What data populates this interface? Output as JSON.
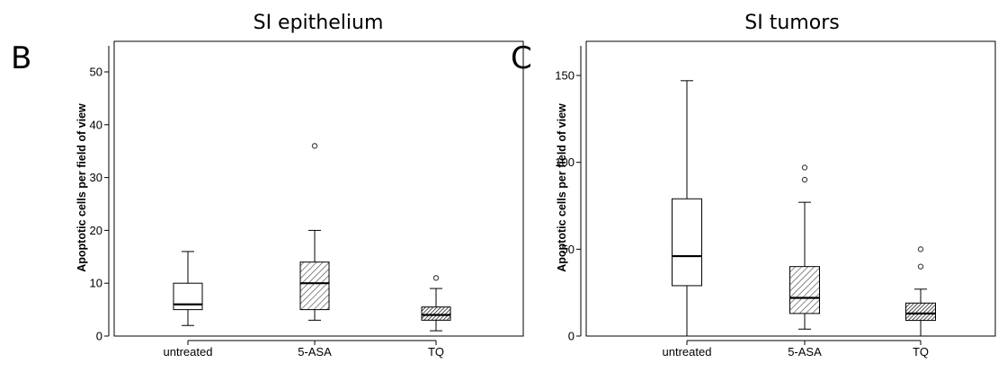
{
  "chart_data": [
    {
      "type": "boxplot",
      "panel_letter": "B",
      "title": "SI epithelium",
      "xlabel": "",
      "ylabel": "Apoptotic cells per field of view",
      "ylim": [
        0,
        55
      ],
      "yticks": [
        0,
        10,
        20,
        30,
        40,
        50
      ],
      "ytick_labels": [
        "0",
        "10",
        "20",
        "30",
        "40",
        "50"
      ],
      "categories": [
        "untreated",
        "5-ASA",
        "TQ"
      ],
      "boxes": [
        {
          "category": "untreated",
          "min": 2,
          "q1": 5,
          "median": 6,
          "q3": 10,
          "max": 16,
          "outliers": [],
          "fill": "white"
        },
        {
          "category": "5-ASA",
          "min": 3,
          "q1": 5,
          "median": 10,
          "q3": 14,
          "max": 20,
          "outliers": [
            36
          ],
          "fill": "diagonal-hatch"
        },
        {
          "category": "TQ",
          "min": 1,
          "q1": 3,
          "median": 4,
          "q3": 5.5,
          "max": 9,
          "outliers": [
            11
          ],
          "fill": "dense-hatch"
        }
      ]
    },
    {
      "type": "boxplot",
      "panel_letter": "C",
      "title": "SI tumors",
      "xlabel": "",
      "ylabel": "Apoptotic cells per field of view",
      "ylim": [
        0,
        165
      ],
      "yticks": [
        0,
        50,
        100,
        150
      ],
      "ytick_labels": [
        "0",
        "50",
        "100",
        "150"
      ],
      "categories": [
        "untreated",
        "5-ASA",
        "TQ"
      ],
      "boxes": [
        {
          "category": "untreated",
          "min": 0,
          "q1": 29,
          "median": 46,
          "q3": 79,
          "max": 147,
          "outliers": [],
          "fill": "white"
        },
        {
          "category": "5-ASA",
          "min": 4,
          "q1": 13,
          "median": 22,
          "q3": 40,
          "max": 77,
          "outliers": [
            90,
            97
          ],
          "fill": "diagonal-hatch"
        },
        {
          "category": "TQ",
          "min": 0,
          "q1": 9,
          "median": 13,
          "q3": 19,
          "max": 27,
          "outliers": [
            40,
            50
          ],
          "fill": "dense-hatch"
        }
      ]
    }
  ]
}
